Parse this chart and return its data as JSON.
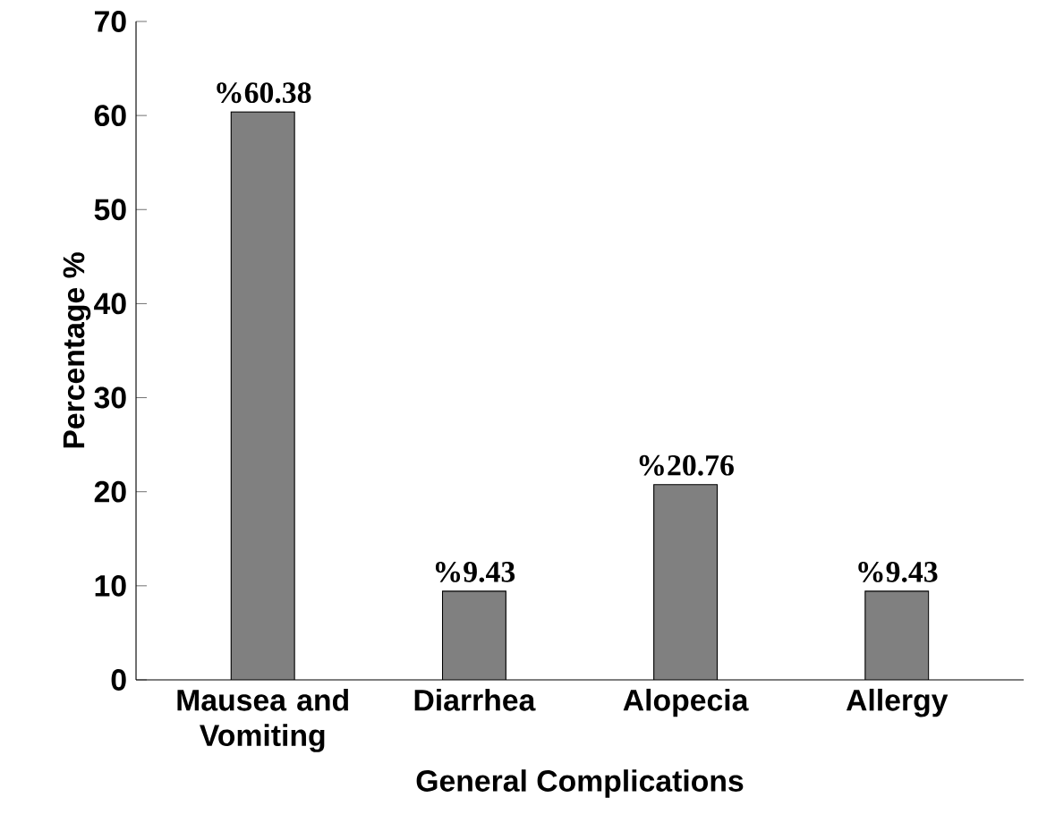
{
  "chart_data": {
    "type": "bar",
    "xlabel": "General Complications",
    "ylabel": "Percentage %",
    "categories": [
      "Mausea and Vomiting",
      "Diarrhea",
      "Alopecia",
      "Allergy"
    ],
    "values": [
      60.38,
      9.43,
      20.76,
      9.43
    ],
    "value_labels": [
      "%60.38",
      "%9.43",
      "%20.76",
      "%9.43"
    ],
    "color": "#808080",
    "ylim": [
      0,
      70
    ],
    "yticks": [
      0,
      10,
      20,
      30,
      40,
      50,
      60,
      70
    ]
  }
}
